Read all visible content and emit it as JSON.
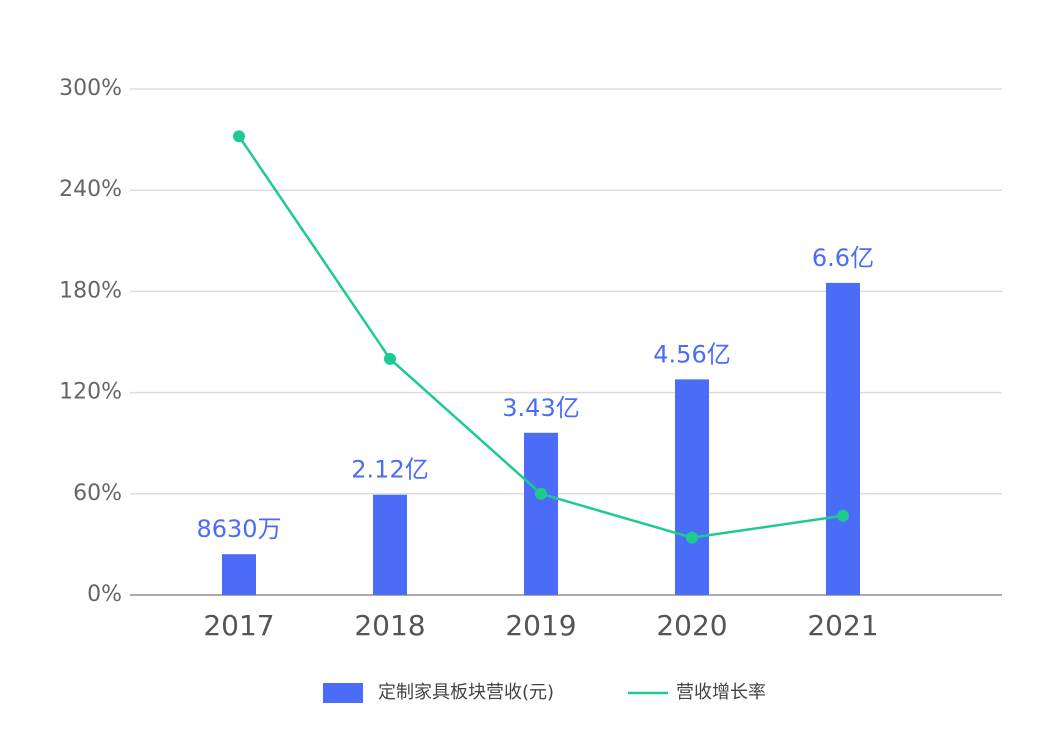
{
  "chart_data": {
    "type": "bar-line",
    "categories": [
      "2017",
      "2018",
      "2019",
      "2020",
      "2021"
    ],
    "series": [
      {
        "name": "定制家具板块营收(元)",
        "type": "bar",
        "axis": "y2",
        "color": "#4a6cf7",
        "values": [
          86300000,
          212000000,
          343000000,
          456000000,
          660000000
        ],
        "value_labels": [
          "8630万",
          "2.12亿",
          "3.43亿",
          "4.56亿",
          "6.6亿"
        ]
      },
      {
        "name": "营收增长率",
        "type": "line",
        "color": "#1ecb8e",
        "values": [
          272,
          140,
          60,
          34,
          47
        ]
      }
    ],
    "ylim": [
      0,
      300
    ],
    "yticks": [
      {
        "value": 0,
        "label": "0%"
      },
      {
        "value": 60,
        "label": "60%"
      },
      {
        "value": 120,
        "label": "120%"
      },
      {
        "value": 180,
        "label": "180%"
      },
      {
        "value": 240,
        "label": "240%"
      },
      {
        "value": 300,
        "label": "300%"
      }
    ],
    "y2lim": [
      0,
      1070000000
    ],
    "grid": true,
    "legend": "bottom"
  }
}
